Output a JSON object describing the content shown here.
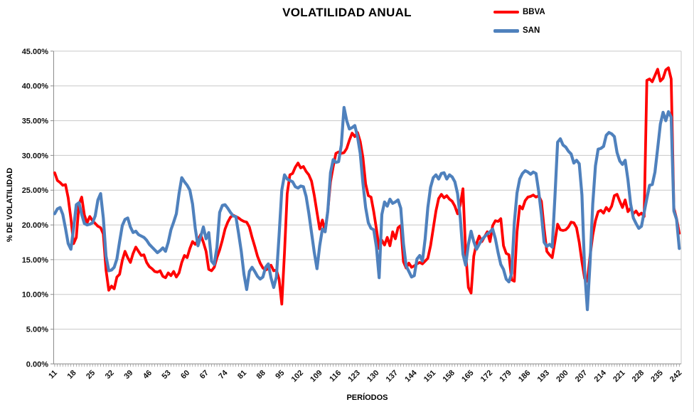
{
  "title": "VOLATILIDAD ANUAL",
  "chart_data": {
    "type": "line",
    "title": "VOLATILIDAD ANUAL",
    "xlabel": "PERÍODOS",
    "ylabel": "% DE VOLATILIDAD",
    "grid": true,
    "legend_position": "top-right",
    "ylim": [
      0,
      45
    ],
    "y_step": 5,
    "y_tick_labels": [
      "0.00%",
      "5.00%",
      "10.00%",
      "15.00%",
      "20.00%",
      "25.00%",
      "30.00%",
      "35.00%",
      "40.00%",
      "45.00%"
    ],
    "x_range": [
      11,
      242
    ],
    "x_tick_labels": [
      "11",
      "18",
      "25",
      "32",
      "39",
      "46",
      "53",
      "60",
      "67",
      "74",
      "81",
      "88",
      "95",
      "102",
      "109",
      "116",
      "123",
      "130",
      "137",
      "144",
      "151",
      "158",
      "165",
      "172",
      "179",
      "186",
      "193",
      "200",
      "207",
      "214",
      "221",
      "228",
      "235",
      "242"
    ],
    "series": [
      {
        "name": "BBVA",
        "color": "#FF0000",
        "values": [
          27.5,
          26.4,
          26.1,
          25.7,
          25.8,
          23.9,
          20.9,
          17.3,
          18.2,
          23.0,
          24.0,
          21.4,
          20.3,
          21.2,
          20.6,
          20.2,
          19.8,
          19.6,
          18.7,
          13.5,
          10.6,
          11.2,
          10.8,
          12.5,
          12.9,
          14.9,
          16.2,
          15.3,
          14.6,
          15.9,
          16.8,
          16.2,
          15.6,
          15.7,
          14.6,
          14.0,
          13.7,
          13.3,
          13.2,
          13.4,
          12.6,
          12.4,
          13.1,
          12.7,
          13.3,
          12.5,
          13.1,
          14.6,
          15.6,
          15.3,
          16.6,
          17.6,
          17.2,
          17.8,
          18.6,
          17.5,
          16.2,
          13.6,
          13.4,
          13.9,
          15.3,
          16.4,
          17.8,
          19.4,
          20.4,
          21.1,
          21.4,
          21.2,
          21.0,
          20.7,
          20.5,
          20.4,
          19.7,
          18.2,
          16.9,
          15.5,
          14.5,
          13.8,
          13.5,
          13.7,
          14.2,
          13.4,
          13.5,
          12.2,
          8.6,
          16.0,
          24.5,
          27.2,
          27.4,
          28.3,
          28.9,
          28.2,
          28.4,
          27.7,
          27.2,
          26.3,
          24.3,
          21.8,
          19.4,
          20.7,
          19.0,
          22.0,
          26.2,
          28.4,
          30.3,
          30.5,
          30.3,
          30.4,
          31.0,
          32.2,
          33.2,
          32.7,
          33.3,
          32.0,
          29.7,
          25.9,
          24.2,
          24.0,
          21.9,
          19.4,
          16.6,
          17.8,
          17.1,
          18.2,
          17.0,
          19.0,
          18.0,
          19.6,
          19.9,
          14.7,
          13.8,
          14.5,
          13.9,
          14.1,
          14.4,
          14.6,
          14.4,
          14.8,
          15.2,
          17.0,
          19.5,
          22.0,
          23.8,
          24.4,
          23.9,
          24.2,
          23.7,
          23.4,
          22.7,
          21.6,
          22.9,
          25.2,
          16.0,
          11.0,
          10.2,
          15.5,
          17.3,
          18.4,
          17.6,
          18.3,
          19.0,
          17.6,
          19.9,
          20.6,
          20.5,
          20.9,
          17.0,
          15.9,
          15.7,
          12.1,
          11.9,
          19.0,
          22.7,
          22.3,
          23.5,
          24.0,
          24.1,
          24.3,
          24.0,
          24.2,
          23.4,
          19.5,
          16.2,
          15.7,
          15.3,
          17.6,
          20.1,
          19.3,
          19.2,
          19.3,
          19.7,
          20.4,
          20.3,
          19.6,
          17.5,
          14.7,
          12.3,
          11.9,
          15.5,
          18.5,
          20.6,
          21.9,
          22.1,
          21.7,
          22.5,
          22.0,
          22.7,
          24.2,
          24.4,
          23.4,
          22.5,
          23.6,
          21.9,
          22.4,
          21.6,
          22.0,
          21.4,
          21.7,
          21.2,
          40.8,
          41.0,
          40.6,
          41.5,
          42.4,
          40.7,
          41.1,
          42.3,
          42.6,
          41.0,
          22.4,
          20.9,
          18.8
        ]
      },
      {
        "name": "SAN",
        "color": "#4F81BD",
        "values": [
          21.6,
          22.3,
          22.5,
          21.5,
          19.5,
          17.3,
          16.5,
          19.5,
          22.9,
          23.2,
          21.5,
          20.2,
          20.0,
          20.1,
          20.3,
          21.3,
          23.6,
          24.5,
          21.0,
          15.5,
          13.4,
          13.5,
          13.9,
          15.1,
          17.6,
          19.9,
          20.8,
          21.0,
          19.7,
          18.9,
          19.1,
          18.6,
          18.4,
          18.2,
          17.8,
          17.2,
          16.8,
          16.4,
          16.0,
          16.3,
          16.7,
          16.2,
          17.5,
          19.3,
          20.4,
          21.6,
          24.5,
          26.8,
          26.2,
          25.7,
          25.0,
          23.0,
          19.5,
          17.0,
          18.3,
          19.7,
          18.0,
          18.9,
          14.8,
          14.3,
          16.8,
          21.8,
          22.8,
          22.9,
          22.4,
          21.8,
          21.3,
          21.2,
          18.8,
          16.2,
          12.9,
          10.7,
          13.3,
          13.9,
          13.3,
          12.6,
          12.2,
          12.5,
          13.9,
          14.4,
          12.4,
          11.0,
          12.5,
          18.5,
          25.0,
          27.2,
          26.6,
          26.4,
          26.2,
          25.5,
          25.3,
          25.6,
          25.5,
          24.1,
          21.7,
          18.9,
          16.1,
          13.7,
          17.0,
          19.4,
          19.0,
          22.0,
          27.5,
          29.4,
          29.0,
          29.1,
          31.5,
          36.9,
          35.0,
          33.8,
          34.0,
          34.3,
          32.7,
          30.3,
          26.0,
          22.5,
          20.3,
          19.5,
          19.3,
          16.8,
          12.4,
          21.5,
          23.3,
          22.7,
          23.7,
          23.1,
          23.3,
          23.6,
          22.4,
          17.3,
          14.1,
          13.3,
          12.5,
          12.7,
          15.1,
          15.6,
          14.8,
          18.0,
          22.5,
          25.4,
          26.8,
          27.2,
          26.6,
          27.4,
          27.5,
          26.6,
          27.2,
          26.9,
          26.2,
          24.5,
          21.0,
          15.8,
          14.2,
          17.2,
          19.1,
          17.6,
          16.5,
          17.2,
          17.9,
          18.3,
          18.7,
          19.0,
          19.4,
          18.0,
          16.0,
          14.3,
          13.6,
          12.2,
          11.8,
          13.0,
          20.3,
          24.6,
          26.6,
          27.4,
          27.8,
          27.6,
          27.3,
          27.6,
          27.4,
          24.8,
          21.5,
          17.5,
          16.9,
          17.2,
          16.8,
          24.0,
          31.9,
          32.4,
          31.5,
          31.2,
          30.6,
          30.2,
          28.9,
          29.3,
          28.8,
          24.3,
          13.5,
          7.8,
          14.5,
          23.0,
          28.5,
          30.9,
          31.0,
          31.3,
          32.9,
          33.3,
          33.1,
          32.7,
          30.4,
          29.2,
          28.7,
          29.3,
          26.5,
          23.0,
          21.0,
          20.2,
          19.5,
          19.8,
          21.8,
          23.8,
          25.7,
          25.8,
          27.6,
          31.0,
          34.5,
          36.2,
          35.0,
          36.3,
          35.5,
          22.0,
          20.8,
          16.6
        ]
      }
    ]
  }
}
